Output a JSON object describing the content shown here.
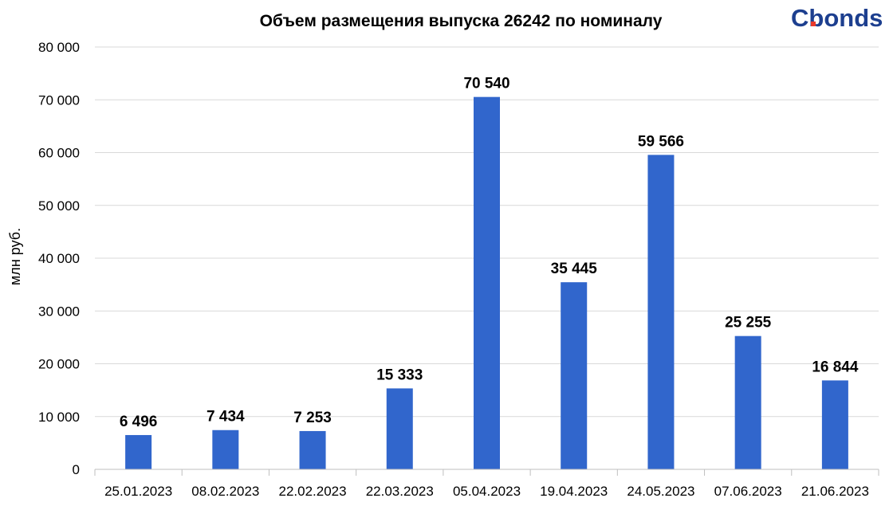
{
  "brand": {
    "logo_text": "Cbonds",
    "logo_color": "#1d3f8f",
    "logo_accent": "#e8392b"
  },
  "chart_data": {
    "type": "bar",
    "title": "Объем размещения выпуска 26242 по номиналу",
    "xlabel": "",
    "ylabel": "млн руб.",
    "categories": [
      "25.01.2023",
      "08.02.2023",
      "22.02.2023",
      "22.03.2023",
      "05.04.2023",
      "19.04.2023",
      "24.05.2023",
      "07.06.2023",
      "21.06.2023"
    ],
    "values": [
      6496,
      7434,
      7253,
      15333,
      70540,
      35445,
      59566,
      25255,
      16844
    ],
    "value_labels": [
      "6 496",
      "7 434",
      "7 253",
      "15 333",
      "70 540",
      "35 445",
      "59 566",
      "25 255",
      "16 844"
    ],
    "ylim": [
      0,
      80000
    ],
    "yticks": [
      0,
      10000,
      20000,
      30000,
      40000,
      50000,
      60000,
      70000,
      80000
    ],
    "ytick_labels": [
      "0",
      "10 000",
      "20 000",
      "30 000",
      "40 000",
      "50 000",
      "60 000",
      "70 000",
      "80 000"
    ],
    "grid": true,
    "legend": "none",
    "bar_color": "#3166cc"
  }
}
